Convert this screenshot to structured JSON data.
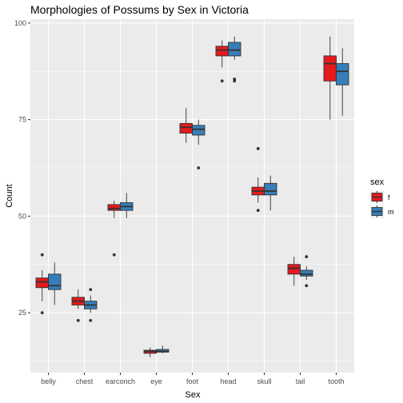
{
  "chart_data": {
    "type": "boxplot",
    "title": "Morphologies of Possums by Sex in Victoria",
    "xlabel": "Sex",
    "ylabel": "Count",
    "ylim": [
      9.5,
      101
    ],
    "yticks": [
      25,
      50,
      75,
      100
    ],
    "grid": true,
    "legend": {
      "title": "sex",
      "position": "right",
      "entries": [
        "f",
        "m"
      ]
    },
    "colors": {
      "f": "#e41a1c",
      "m": "#377eb8",
      "panel": "#ebebeb",
      "grid": "#ffffff"
    },
    "categories": [
      "belly",
      "chest",
      "earconch",
      "eye",
      "foot",
      "head",
      "skull",
      "tail",
      "tooth"
    ],
    "series": [
      {
        "name": "f",
        "boxes": [
          {
            "low": 28.0,
            "q1": 31.5,
            "median": 33.0,
            "q3": 34.0,
            "high": 36.0,
            "outliers": [
              25.0,
              40.0
            ]
          },
          {
            "low": 26.0,
            "q1": 27.0,
            "median": 28.0,
            "q3": 29.0,
            "high": 31.0,
            "outliers": [
              23.0
            ]
          },
          {
            "low": 49.5,
            "q1": 51.5,
            "median": 52.0,
            "q3": 53.0,
            "high": 54.0,
            "outliers": [
              40.0
            ]
          },
          {
            "low": 13.5,
            "q1": 14.5,
            "median": 15.0,
            "q3": 15.3,
            "high": 16.0,
            "outliers": []
          },
          {
            "low": 69.0,
            "q1": 71.5,
            "median": 73.0,
            "q3": 74.0,
            "high": 78.0,
            "outliers": []
          },
          {
            "low": 88.5,
            "q1": 91.5,
            "median": 93.0,
            "q3": 94.0,
            "high": 95.5,
            "outliers": [
              85.0
            ]
          },
          {
            "low": 53.5,
            "q1": 55.5,
            "median": 56.5,
            "q3": 57.5,
            "high": 60.0,
            "outliers": [
              51.5,
              67.5
            ]
          },
          {
            "low": 32.0,
            "q1": 35.0,
            "median": 36.5,
            "q3": 37.5,
            "high": 39.5,
            "outliers": []
          },
          {
            "low": 75.0,
            "q1": 85.0,
            "median": 89.5,
            "q3": 91.5,
            "high": 96.5,
            "outliers": []
          }
        ]
      },
      {
        "name": "m",
        "boxes": [
          {
            "low": 27.0,
            "q1": 31.0,
            "median": 32.0,
            "q3": 35.0,
            "high": 38.0,
            "outliers": []
          },
          {
            "low": 25.0,
            "q1": 26.0,
            "median": 27.0,
            "q3": 28.0,
            "high": 29.5,
            "outliers": [
              23.0,
              31.0
            ]
          },
          {
            "low": 49.5,
            "q1": 51.5,
            "median": 52.5,
            "q3": 53.5,
            "high": 56.0,
            "outliers": []
          },
          {
            "low": 14.5,
            "q1": 14.8,
            "median": 15.0,
            "q3": 15.5,
            "high": 16.5,
            "outliers": []
          },
          {
            "low": 68.5,
            "q1": 71.0,
            "median": 72.5,
            "q3": 73.5,
            "high": 75.0,
            "outliers": [
              62.5
            ]
          },
          {
            "low": 90.5,
            "q1": 91.5,
            "median": 93.0,
            "q3": 95.0,
            "high": 96.5,
            "outliers": [
              85.0,
              85.5
            ]
          },
          {
            "low": 51.5,
            "q1": 55.5,
            "median": 56.5,
            "q3": 58.5,
            "high": 60.5,
            "outliers": []
          },
          {
            "low": 33.5,
            "q1": 34.5,
            "median": 35.0,
            "q3": 36.0,
            "high": 37.0,
            "outliers": [
              32.0,
              39.5
            ]
          },
          {
            "low": 76.0,
            "q1": 84.0,
            "median": 87.5,
            "q3": 89.5,
            "high": 93.5,
            "outliers": []
          }
        ]
      }
    ]
  }
}
